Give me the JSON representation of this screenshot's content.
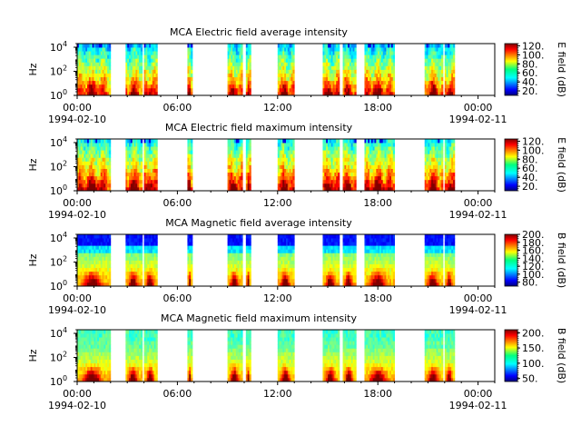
{
  "chart_data": [
    {
      "type": "heatmap",
      "title": "MCA  Electric field average intensity",
      "ylabel": "Hz",
      "cbar_label": "E field (dB)",
      "cbar_ticks": [
        "20.",
        "40.",
        "60.",
        "80.",
        "100.",
        "120."
      ],
      "cbar_range": [
        10,
        125
      ],
      "colormap": "jet",
      "field": "E",
      "mode": "avg",
      "yscale": "log",
      "ylim": [
        1,
        20000
      ],
      "yticks": [
        {
          "value": 1,
          "base": "10",
          "exp": "0"
        },
        {
          "value": 100,
          "base": "10",
          "exp": "2"
        },
        {
          "value": 10000,
          "base": "10",
          "exp": "4"
        }
      ],
      "xlim": [
        "1994-02-10 00:00",
        "1994-02-11 01:00"
      ],
      "xticks": [
        {
          "hour": 0,
          "time": "00:00",
          "date": "1994-02-10"
        },
        {
          "hour": 6,
          "time": "06:00",
          "date": ""
        },
        {
          "hour": 12,
          "time": "12:00",
          "date": ""
        },
        {
          "hour": 18,
          "time": "18:00",
          "date": ""
        },
        {
          "hour": 24,
          "time": "00:00",
          "date": "1994-02-11"
        }
      ],
      "data_intervals_hours": [
        [
          0.0,
          2.0
        ],
        [
          2.9,
          3.9
        ],
        [
          4.0,
          4.8
        ],
        [
          6.6,
          6.9
        ],
        [
          9.0,
          9.9
        ],
        [
          10.1,
          10.4
        ],
        [
          12.0,
          13.0
        ],
        [
          14.7,
          15.7
        ],
        [
          15.9,
          16.7
        ],
        [
          17.2,
          19.0
        ],
        [
          20.8,
          21.9
        ],
        [
          22.0,
          22.6
        ]
      ]
    },
    {
      "type": "heatmap",
      "title": "MCA  Electric field maximum intensity",
      "ylabel": "Hz",
      "cbar_label": "E field (dB)",
      "cbar_ticks": [
        "20.",
        "40.",
        "60.",
        "80.",
        "100.",
        "120."
      ],
      "cbar_range": [
        10,
        125
      ],
      "colormap": "jet",
      "field": "E",
      "mode": "max",
      "yscale": "log",
      "ylim": [
        1,
        20000
      ],
      "yticks": [
        {
          "value": 1,
          "base": "10",
          "exp": "0"
        },
        {
          "value": 100,
          "base": "10",
          "exp": "2"
        },
        {
          "value": 10000,
          "base": "10",
          "exp": "4"
        }
      ],
      "xlim": [
        "1994-02-10 00:00",
        "1994-02-11 01:00"
      ],
      "xticks": [
        {
          "hour": 0,
          "time": "00:00",
          "date": "1994-02-10"
        },
        {
          "hour": 6,
          "time": "06:00",
          "date": ""
        },
        {
          "hour": 12,
          "time": "12:00",
          "date": ""
        },
        {
          "hour": 18,
          "time": "18:00",
          "date": ""
        },
        {
          "hour": 24,
          "time": "00:00",
          "date": "1994-02-11"
        }
      ],
      "data_intervals_hours": [
        [
          0.0,
          2.0
        ],
        [
          2.9,
          3.9
        ],
        [
          4.0,
          4.8
        ],
        [
          6.6,
          6.9
        ],
        [
          9.0,
          9.9
        ],
        [
          10.1,
          10.4
        ],
        [
          12.0,
          13.0
        ],
        [
          14.7,
          15.7
        ],
        [
          15.9,
          16.7
        ],
        [
          17.2,
          19.0
        ],
        [
          20.8,
          21.9
        ],
        [
          22.0,
          22.6
        ]
      ]
    },
    {
      "type": "heatmap",
      "title": "MCA  Magnetic field average intensity",
      "ylabel": "Hz",
      "cbar_label": "B field (dB)",
      "cbar_ticks": [
        "80.",
        "100.",
        "120.",
        "140.",
        "160.",
        "180.",
        "200."
      ],
      "cbar_range": [
        70,
        200
      ],
      "colormap": "jet",
      "field": "B",
      "mode": "avg",
      "yscale": "log",
      "ylim": [
        1,
        20000
      ],
      "yticks": [
        {
          "value": 1,
          "base": "10",
          "exp": "0"
        },
        {
          "value": 100,
          "base": "10",
          "exp": "2"
        },
        {
          "value": 10000,
          "base": "10",
          "exp": "4"
        }
      ],
      "xlim": [
        "1994-02-10 00:00",
        "1994-02-11 01:00"
      ],
      "xticks": [
        {
          "hour": 0,
          "time": "00:00",
          "date": "1994-02-10"
        },
        {
          "hour": 6,
          "time": "06:00",
          "date": ""
        },
        {
          "hour": 12,
          "time": "12:00",
          "date": ""
        },
        {
          "hour": 18,
          "time": "18:00",
          "date": ""
        },
        {
          "hour": 24,
          "time": "00:00",
          "date": "1994-02-11"
        }
      ],
      "data_intervals_hours": [
        [
          0.0,
          2.0
        ],
        [
          2.9,
          3.9
        ],
        [
          4.0,
          4.8
        ],
        [
          6.6,
          6.9
        ],
        [
          9.0,
          9.9
        ],
        [
          10.1,
          10.4
        ],
        [
          12.0,
          13.0
        ],
        [
          14.7,
          15.7
        ],
        [
          15.9,
          16.7
        ],
        [
          17.2,
          19.0
        ],
        [
          20.8,
          21.9
        ],
        [
          22.0,
          22.6
        ]
      ]
    },
    {
      "type": "heatmap",
      "title": "MCA  Magnetic field maximum intensity",
      "ylabel": "Hz",
      "cbar_label": "B field (dB)",
      "cbar_ticks": [
        "50.",
        "100.",
        "150.",
        "200."
      ],
      "cbar_range": [
        40,
        210
      ],
      "colormap": "jet",
      "field": "B",
      "mode": "max",
      "yscale": "log",
      "ylim": [
        1,
        20000
      ],
      "yticks": [
        {
          "value": 1,
          "base": "10",
          "exp": "0"
        },
        {
          "value": 100,
          "base": "10",
          "exp": "2"
        },
        {
          "value": 10000,
          "base": "10",
          "exp": "4"
        }
      ],
      "xlim": [
        "1994-02-10 00:00",
        "1994-02-11 01:00"
      ],
      "xticks": [
        {
          "hour": 0,
          "time": "00:00",
          "date": "1994-02-10"
        },
        {
          "hour": 6,
          "time": "06:00",
          "date": ""
        },
        {
          "hour": 12,
          "time": "12:00",
          "date": ""
        },
        {
          "hour": 18,
          "time": "18:00",
          "date": ""
        },
        {
          "hour": 24,
          "time": "00:00",
          "date": "1994-02-11"
        }
      ],
      "data_intervals_hours": [
        [
          0.0,
          2.0
        ],
        [
          2.9,
          3.9
        ],
        [
          4.0,
          4.8
        ],
        [
          6.6,
          6.9
        ],
        [
          9.0,
          9.9
        ],
        [
          10.1,
          10.4
        ],
        [
          12.0,
          13.0
        ],
        [
          14.7,
          15.7
        ],
        [
          15.9,
          16.7
        ],
        [
          17.2,
          19.0
        ],
        [
          20.8,
          21.9
        ],
        [
          22.0,
          22.6
        ]
      ]
    }
  ]
}
